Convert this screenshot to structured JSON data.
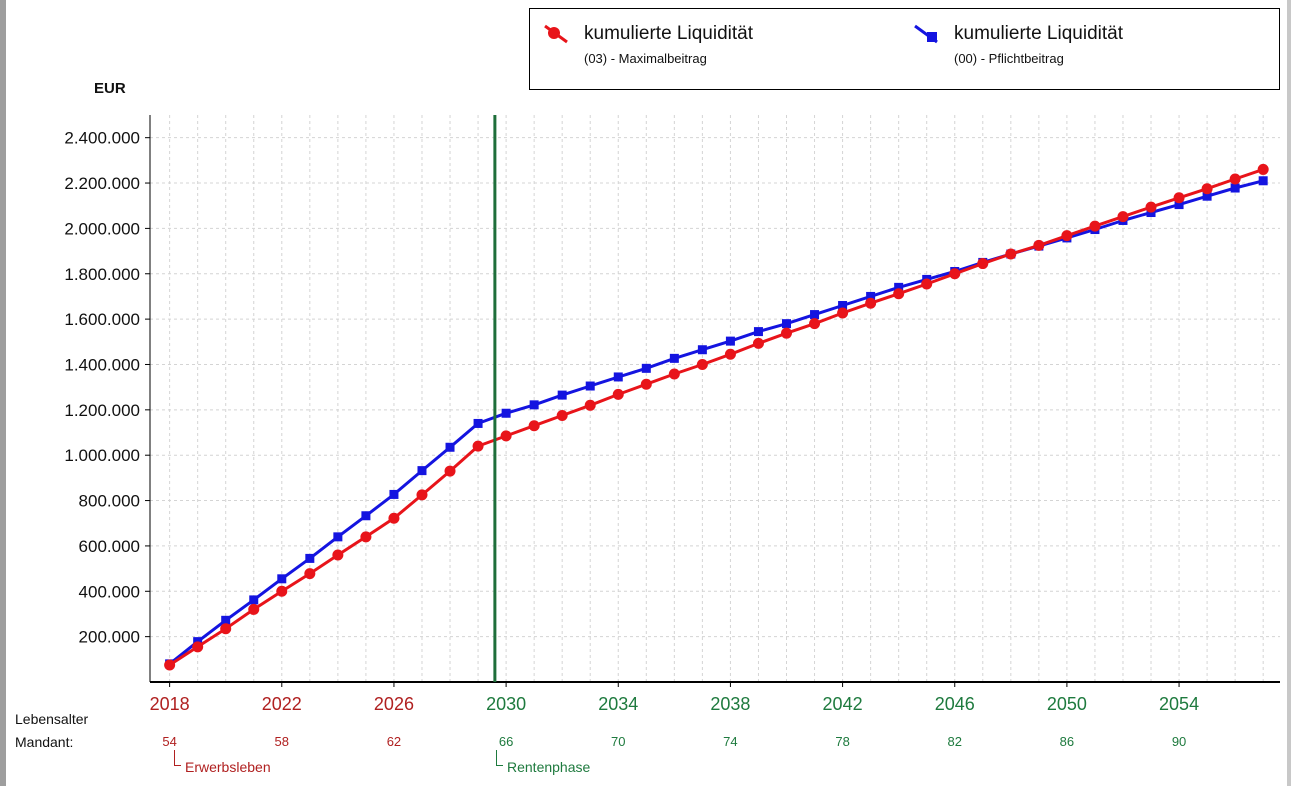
{
  "legend": {
    "entries": [
      {
        "label": "kumulierte Liquidität",
        "sublabel": "(03) - Maximalbeitrag",
        "color": "#e8141a"
      },
      {
        "label": "kumulierte Liquidität",
        "sublabel": "(00) - Pflichtbeitrag",
        "color": "#1414e0"
      }
    ]
  },
  "y_unit": "EUR",
  "age_caption": {
    "line1": "Lebensalter",
    "line2": "Mandant:"
  },
  "phases": [
    {
      "label": "Erwerbsleben",
      "color": "#b02020"
    },
    {
      "label": "Rentenphase",
      "color": "#1e7a3e"
    }
  ],
  "colors": {
    "work_phase": "#b02020",
    "retirement_phase": "#1e7a3e",
    "retirement_line": "#1e6e3a",
    "grid": "#d4d4d4",
    "axis": "#000000"
  },
  "chart_data": {
    "type": "line",
    "x": [
      2018,
      2019,
      2020,
      2021,
      2022,
      2023,
      2024,
      2025,
      2026,
      2027,
      2028,
      2029,
      2030,
      2031,
      2032,
      2033,
      2034,
      2035,
      2036,
      2037,
      2038,
      2039,
      2040,
      2041,
      2042,
      2043,
      2044,
      2045,
      2046,
      2047,
      2048,
      2049,
      2050,
      2051,
      2052,
      2053,
      2054,
      2055,
      2056,
      2057
    ],
    "x_ticks": [
      2018,
      2022,
      2026,
      2030,
      2034,
      2038,
      2042,
      2046,
      2050,
      2054
    ],
    "x_tick_labels": [
      "2018",
      "2022",
      "2026",
      "2030",
      "2034",
      "2038",
      "2042",
      "2046",
      "2050",
      "2054"
    ],
    "age_ticks": [
      "54",
      "58",
      "62",
      "66",
      "70",
      "74",
      "78",
      "82",
      "86",
      "90"
    ],
    "xlim": [
      2017.3,
      2057.6
    ],
    "ylim": [
      0,
      2500000
    ],
    "y_ticks": [
      200000,
      400000,
      600000,
      800000,
      1000000,
      1200000,
      1400000,
      1600000,
      1800000,
      2000000,
      2200000,
      2400000
    ],
    "y_tick_labels": [
      "200.000",
      "400.000",
      "600.000",
      "800.000",
      "1.000.000",
      "1.200.000",
      "1.400.000",
      "1.600.000",
      "1.800.000",
      "2.000.000",
      "2.200.000",
      "2.400.000"
    ],
    "retirement_x": 2029.6,
    "grid": true,
    "legend_position": "top-right",
    "series": [
      {
        "name": "kumulierte Liquidität (03) - Maximalbeitrag",
        "color": "#e8141a",
        "marker": "circle",
        "values": [
          75000,
          155000,
          235000,
          320000,
          400000,
          478000,
          560000,
          640000,
          722000,
          825000,
          930000,
          1040000,
          1085000,
          1130000,
          1175000,
          1220000,
          1268000,
          1313000,
          1358000,
          1400000,
          1445000,
          1493000,
          1538000,
          1580000,
          1627000,
          1670000,
          1712000,
          1755000,
          1800000,
          1845000,
          1887000,
          1925000,
          1968000,
          2010000,
          2052000,
          2094000,
          2135000,
          2175000,
          2218000,
          2260000
        ]
      },
      {
        "name": "kumulierte Liquidität (00) - Pflichtbeitrag",
        "color": "#1414e0",
        "marker": "square",
        "values": [
          80000,
          178000,
          272000,
          362000,
          455000,
          545000,
          640000,
          733000,
          827000,
          932000,
          1035000,
          1140000,
          1185000,
          1222000,
          1265000,
          1305000,
          1345000,
          1383000,
          1427000,
          1465000,
          1503000,
          1545000,
          1580000,
          1620000,
          1660000,
          1700000,
          1740000,
          1775000,
          1810000,
          1850000,
          1887000,
          1922000,
          1958000,
          1995000,
          2035000,
          2070000,
          2105000,
          2142000,
          2178000,
          2210000
        ]
      }
    ]
  }
}
